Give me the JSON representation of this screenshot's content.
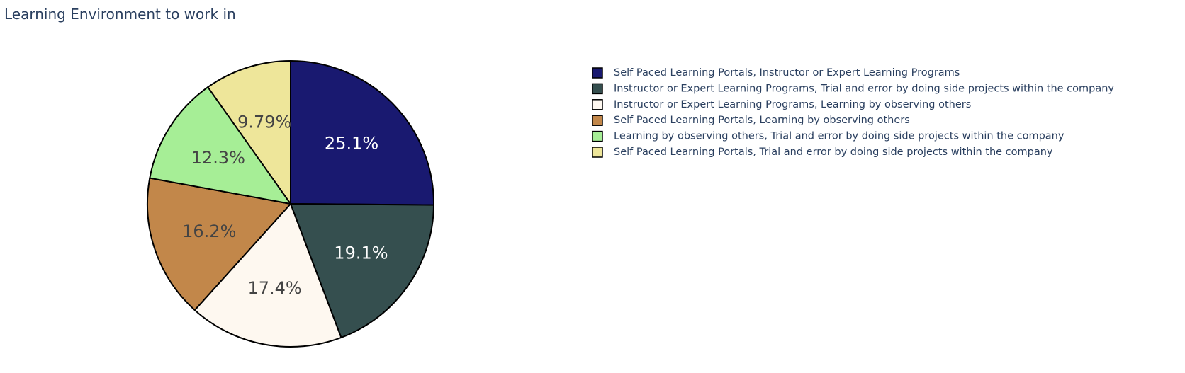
{
  "chart_data": {
    "type": "pie",
    "title": "Learning Environment to work in",
    "legend_position": "top-right",
    "slices": [
      {
        "label": "Self Paced Learning Portals, Instructor or Expert Learning Programs",
        "value": 25.1,
        "label_text": "25.1%",
        "color": "#191970",
        "text_color": "#ffffff"
      },
      {
        "label": "Instructor or Expert Learning Programs, Trial and error by doing side projects within the company",
        "value": 19.1,
        "label_text": "19.1%",
        "color": "#354f4f",
        "text_color": "#ffffff"
      },
      {
        "label": "Instructor or Expert Learning Programs, Learning by observing others",
        "value": 17.4,
        "label_text": "17.4%",
        "color": "#fef8f0",
        "text_color": "#444444"
      },
      {
        "label": "Self Paced Learning Portals, Learning by observing others",
        "value": 16.2,
        "label_text": "16.2%",
        "color": "#c2874a",
        "text_color": "#444444"
      },
      {
        "label": "Learning by observing others, Trial and error by doing side projects within the company",
        "value": 12.3,
        "label_text": "12.3%",
        "color": "#a6ee96",
        "text_color": "#444444"
      },
      {
        "label": "Self Paced Learning Portals, Trial and error by doing side projects within the company",
        "value": 9.79,
        "label_text": "9.79%",
        "color": "#eee69a",
        "text_color": "#444444"
      }
    ]
  }
}
